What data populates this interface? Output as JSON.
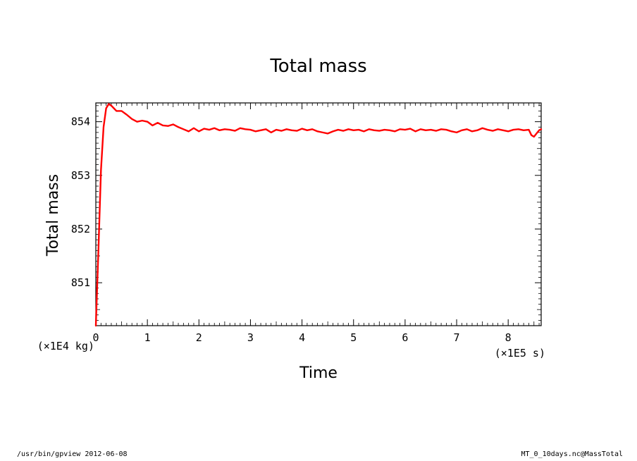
{
  "chart_data": {
    "type": "line",
    "title": "Total mass",
    "xlabel": "Time",
    "ylabel": "Total mass",
    "x_unit_label": "(×1E5 s)",
    "y_unit_label": "(×1E4 kg)",
    "xlim": [
      0,
      8.64
    ],
    "ylim": [
      850.2,
      854.35
    ],
    "x_ticks": [
      0,
      1,
      2,
      3,
      4,
      5,
      6,
      7,
      8
    ],
    "y_ticks": [
      851,
      852,
      853,
      854
    ],
    "grid": false,
    "legend": "none",
    "series": [
      {
        "color": "#ff0000",
        "x": [
          0,
          0.05,
          0.1,
          0.15,
          0.2,
          0.25,
          0.3,
          0.35,
          0.4,
          0.5,
          0.6,
          0.7,
          0.8,
          0.9,
          1.0,
          1.1,
          1.2,
          1.3,
          1.4,
          1.5,
          1.6,
          1.7,
          1.8,
          1.9,
          2.0,
          2.1,
          2.2,
          2.3,
          2.4,
          2.5,
          2.6,
          2.7,
          2.8,
          2.9,
          3.0,
          3.1,
          3.2,
          3.3,
          3.4,
          3.5,
          3.6,
          3.7,
          3.8,
          3.9,
          4.0,
          4.1,
          4.2,
          4.3,
          4.4,
          4.5,
          4.6,
          4.7,
          4.8,
          4.9,
          5.0,
          5.1,
          5.2,
          5.3,
          5.4,
          5.5,
          5.6,
          5.7,
          5.8,
          5.9,
          6.0,
          6.1,
          6.2,
          6.3,
          6.4,
          6.5,
          6.6,
          6.7,
          6.8,
          6.9,
          7.0,
          7.1,
          7.2,
          7.3,
          7.4,
          7.5,
          7.6,
          7.7,
          7.8,
          7.9,
          8.0,
          8.1,
          8.2,
          8.3,
          8.4,
          8.45,
          8.5,
          8.55,
          8.6,
          8.64
        ],
        "y": [
          850.2,
          851.6,
          853.1,
          853.9,
          854.25,
          854.33,
          854.3,
          854.25,
          854.2,
          854.2,
          854.13,
          854.05,
          854.0,
          854.02,
          854.0,
          853.93,
          853.98,
          853.93,
          853.92,
          853.95,
          853.9,
          853.86,
          853.82,
          853.88,
          853.82,
          853.87,
          853.85,
          853.88,
          853.84,
          853.86,
          853.85,
          853.83,
          853.88,
          853.86,
          853.85,
          853.82,
          853.84,
          853.86,
          853.8,
          853.85,
          853.83,
          853.86,
          853.84,
          853.83,
          853.87,
          853.84,
          853.86,
          853.82,
          853.8,
          853.78,
          853.82,
          853.85,
          853.83,
          853.86,
          853.84,
          853.85,
          853.82,
          853.86,
          853.84,
          853.83,
          853.85,
          853.84,
          853.82,
          853.86,
          853.85,
          853.87,
          853.82,
          853.86,
          853.84,
          853.85,
          853.83,
          853.86,
          853.85,
          853.82,
          853.8,
          853.84,
          853.86,
          853.82,
          853.84,
          853.88,
          853.85,
          853.83,
          853.86,
          853.84,
          853.82,
          853.85,
          853.86,
          853.84,
          853.85,
          853.75,
          853.72,
          853.78,
          853.84,
          853.86
        ]
      }
    ]
  },
  "footer": {
    "left": "/usr/bin/gpview   2012-06-08",
    "right": "MT_0_10days.nc@MassTotal"
  }
}
